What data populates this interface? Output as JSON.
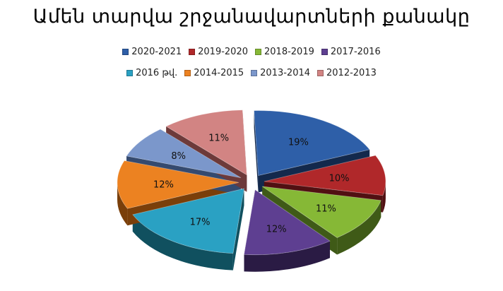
{
  "chart_data": {
    "type": "pie",
    "title": "Ամեն տարվա շրջանավարտների քանակը",
    "slices": [
      {
        "label": "2020-2021",
        "value": 19,
        "display": "19%",
        "color": "#2e5fa8",
        "dark": "#13294c"
      },
      {
        "label": "2019-2020",
        "value": 10,
        "display": "10%",
        "color": "#b0282a",
        "dark": "#511012"
      },
      {
        "label": "2018-2019",
        "value": 11,
        "display": "11%",
        "color": "#86b836",
        "dark": "#3f5a17"
      },
      {
        "label": "2017-2016",
        "value": 12,
        "display": "12%",
        "color": "#5e3f91",
        "dark": "#2a1b44"
      },
      {
        "label": "2016 թվ.",
        "value": 17,
        "display": "17%",
        "color": "#2aa1c3",
        "dark": "#10505f"
      },
      {
        "label": "2014-2015",
        "value": 12,
        "display": "12%",
        "color": "#ec8221",
        "dark": "#7a3f0a"
      },
      {
        "label": "2013-2014",
        "value": 8,
        "display": "8%",
        "color": "#7b97cb",
        "dark": "#354a6f"
      },
      {
        "label": "2012-2013",
        "value": 11,
        "display": "11%",
        "color": "#d28483",
        "dark": "#6d3a3a"
      }
    ],
    "legend": "top",
    "exploded": true,
    "style": "3d"
  }
}
